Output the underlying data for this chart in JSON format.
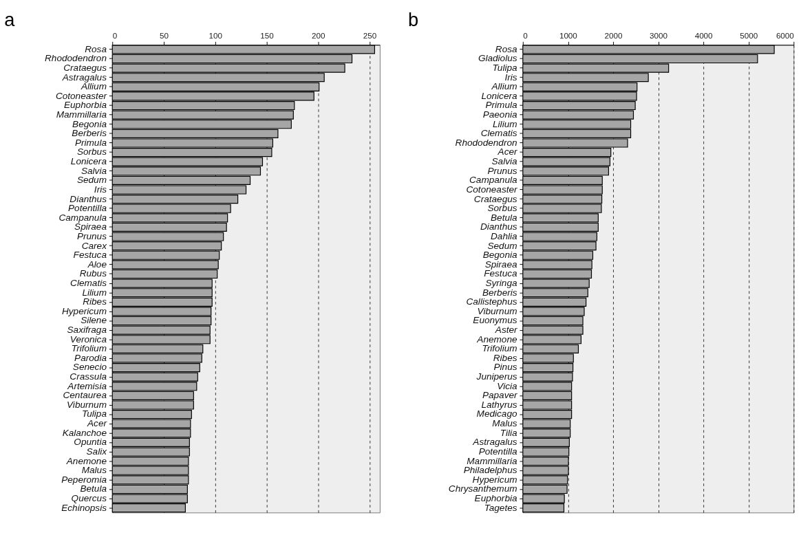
{
  "chart_data": [
    {
      "type": "bar",
      "orientation": "horizontal",
      "title": "a",
      "color": "#a6a6a6",
      "grid": "x",
      "xlim": [
        0,
        260
      ],
      "xticks": [
        0,
        50,
        100,
        150,
        200,
        250
      ],
      "categories": [
        "Rosa",
        "Rhododendron",
        "Crataegus",
        "Astragalus",
        "Allium",
        "Cotoneaster",
        "Euphorbia",
        "Mammillaria",
        "Begonia",
        "Berberis",
        "Primula",
        "Sorbus",
        "Lonicera",
        "Salvia",
        "Sedum",
        "Iris",
        "Dianthus",
        "Potentilla",
        "Campanula",
        "Spiraea",
        "Prunus",
        "Carex",
        "Festuca",
        "Aloe",
        "Rubus",
        "Clematis",
        "Lilium",
        "Ribes",
        "Hypericum",
        "Silene",
        "Saxifraga",
        "Veronica",
        "Trifolium",
        "Parodia",
        "Senecio",
        "Crassula",
        "Artemisia",
        "Centaurea",
        "Viburnum",
        "Tulipa",
        "Acer",
        "Kalanchoe",
        "Opuntia",
        "Salix",
        "Anemone",
        "Malus",
        "Peperomia",
        "Betula",
        "Quercus",
        "Echinopsis"
      ],
      "values": [
        255,
        233,
        226,
        206,
        201,
        196,
        177,
        176,
        174,
        161,
        156,
        155,
        146,
        144,
        134,
        130,
        122,
        115,
        112,
        111,
        108,
        106,
        104,
        103,
        102,
        97,
        97,
        97,
        96,
        96,
        95,
        95,
        88,
        87,
        85,
        83,
        82,
        79,
        79,
        77,
        76,
        76,
        75,
        75,
        74,
        74,
        74,
        73,
        73,
        71
      ]
    },
    {
      "type": "bar",
      "orientation": "horizontal",
      "title": "b",
      "color": "#a6a6a6",
      "grid": "x",
      "xlim": [
        0,
        6000
      ],
      "xticks": [
        0,
        1000,
        2000,
        3000,
        4000,
        5000,
        6000
      ],
      "categories": [
        "Rosa",
        "Gladiolus",
        "Tulipa",
        "Iris",
        "Allium",
        "Lonicera",
        "Primula",
        "Paeonia",
        "Lilium",
        "Clematis",
        "Rhododendron",
        "Acer",
        "Salvia",
        "Prunus",
        "Campanula",
        "Cotoneaster",
        "Crataegus",
        "Sorbus",
        "Betula",
        "Dianthus",
        "Dahlia",
        "Sedum",
        "Begonia",
        "Spiraea",
        "Festuca",
        "Syringa",
        "Berberis",
        "Callistephus",
        "Viburnum",
        "Euonymus",
        "Aster",
        "Anemone",
        "Trifolium",
        "Ribes",
        "Pinus",
        "Juniperus",
        "Vicia",
        "Papaver",
        "Lathyrus",
        "Medicago",
        "Malus",
        "Tilia",
        "Astragalus",
        "Potentilla",
        "Mammillaria",
        "Philadelphus",
        "Hypericum",
        "Chrysanthemum",
        "Euphorbia",
        "Tagetes"
      ],
      "values": [
        5570,
        5200,
        3230,
        2780,
        2530,
        2520,
        2490,
        2450,
        2390,
        2390,
        2320,
        1950,
        1930,
        1900,
        1760,
        1760,
        1750,
        1740,
        1670,
        1670,
        1640,
        1620,
        1550,
        1530,
        1520,
        1470,
        1440,
        1400,
        1360,
        1330,
        1330,
        1290,
        1230,
        1120,
        1110,
        1100,
        1080,
        1080,
        1080,
        1080,
        1050,
        1050,
        1030,
        1020,
        1010,
        1010,
        990,
        980,
        920,
        910
      ]
    }
  ]
}
